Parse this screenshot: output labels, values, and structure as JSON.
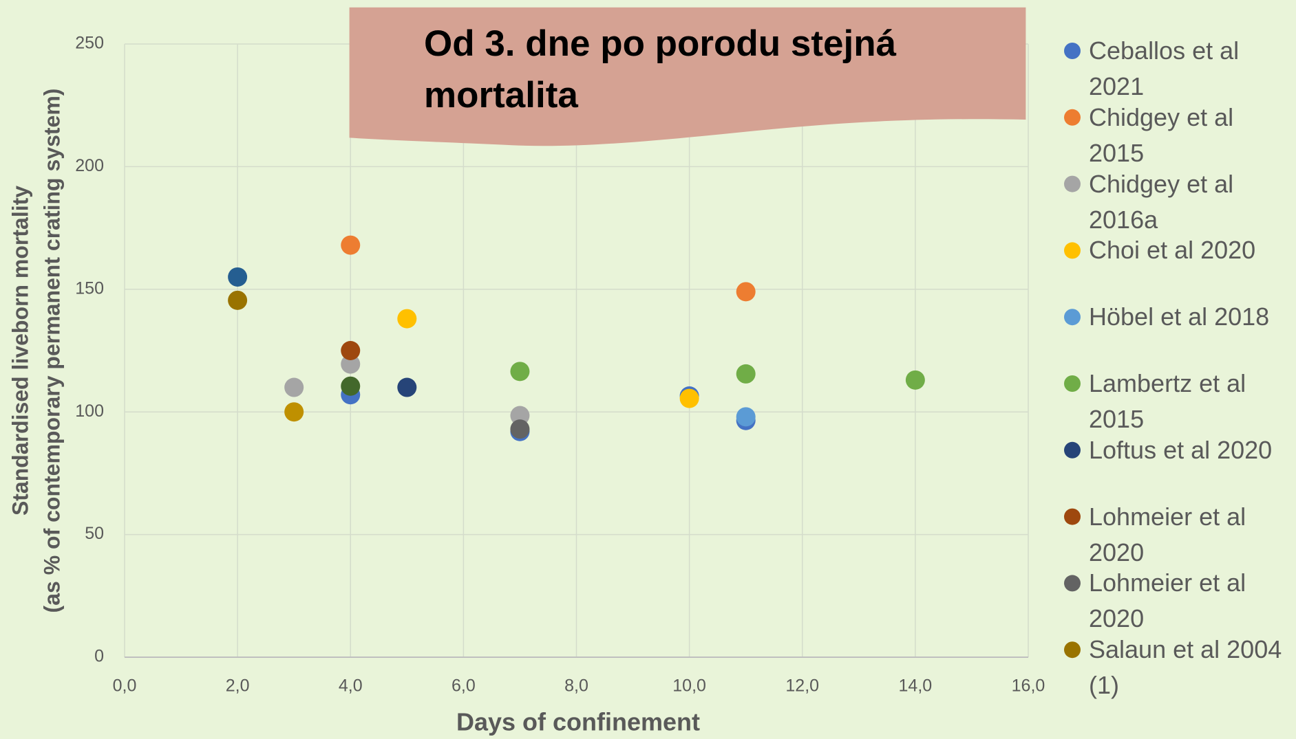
{
  "chart_data": {
    "type": "scatter",
    "annotation": "Od 3. dne po porodu stejná mortalita",
    "xlabel": "Days of confinement",
    "ylabel": [
      "Standardised liveborn mortality",
      "(as % of contemporary permanent crating system)"
    ],
    "xlim": [
      0,
      16
    ],
    "xticks": [
      {
        "value": 0,
        "label": "0,0"
      },
      {
        "value": 2,
        "label": "2,0"
      },
      {
        "value": 4,
        "label": "4,0"
      },
      {
        "value": 6,
        "label": "6,0"
      },
      {
        "value": 8,
        "label": "8,0"
      },
      {
        "value": 10,
        "label": "10,0"
      },
      {
        "value": 12,
        "label": "12,0"
      },
      {
        "value": 14,
        "label": "14,0"
      },
      {
        "value": 16,
        "label": "16,0"
      }
    ],
    "ylim": [
      0,
      250
    ],
    "yticks": [
      0,
      50,
      100,
      150,
      200,
      250
    ],
    "grid": true,
    "legend": "right",
    "series": [
      {
        "name": "Ceballos et al 2021",
        "color": "#4472c4",
        "x": [
          4,
          7,
          10,
          11
        ],
        "values": [
          107,
          92,
          106.5,
          96.5
        ]
      },
      {
        "name": "Chidgey et al 2015",
        "color": "#ed7d31",
        "x": [
          4,
          11
        ],
        "values": [
          168,
          149
        ]
      },
      {
        "name": "Chidgey et al 2016a",
        "color": "#a5a5a5",
        "x": [
          3,
          4,
          7
        ],
        "values": [
          110,
          119.5,
          98.5
        ]
      },
      {
        "name": "Choi et al 2020",
        "color": "#ffc000",
        "x": [
          5,
          10
        ],
        "values": [
          138,
          105.5
        ]
      },
      {
        "name": "Höbel et al 2018",
        "color": "#5b9bd5",
        "x": [
          11
        ],
        "values": [
          98
        ]
      },
      {
        "name": "Lambertz et al 2015",
        "color": "#70ad47",
        "x": [
          7,
          11,
          14
        ],
        "values": [
          116.5,
          115.5,
          113
        ]
      },
      {
        "name": "Loftus et al 2020",
        "color": "#264478",
        "x": [
          5
        ],
        "values": [
          110
        ]
      },
      {
        "name": "Lohmeier et al 2020",
        "color": "#9e480e",
        "x": [
          4
        ],
        "values": [
          125
        ]
      },
      {
        "name": "Lohmeier et al 2020",
        "color": "#636363",
        "x": [
          7
        ],
        "values": [
          93
        ]
      },
      {
        "name": "Salaun et al 2004 (1)",
        "color": "#997300",
        "x": [
          2
        ],
        "values": [
          145.5
        ]
      },
      {
        "color": "#255e91",
        "x": [
          2
        ],
        "values": [
          155
        ]
      },
      {
        "color": "#43682b",
        "x": [
          4
        ],
        "values": [
          110.5
        ]
      },
      {
        "color": "#bf9000",
        "x": [
          3
        ],
        "values": [
          100
        ]
      }
    ]
  }
}
